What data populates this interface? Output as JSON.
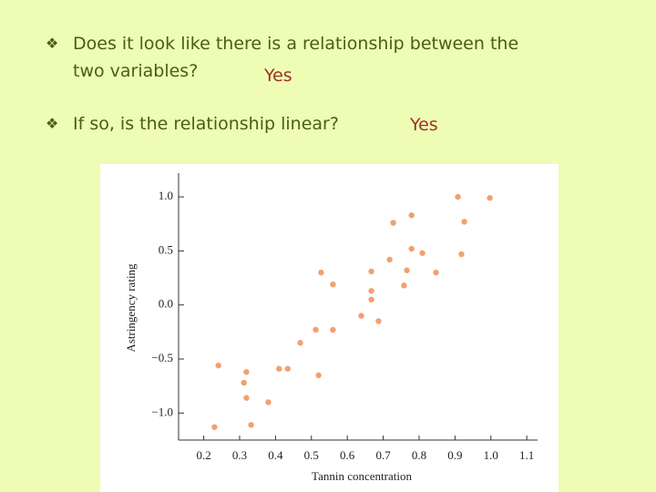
{
  "slide": {
    "questions": [
      {
        "lines": [
          "Does it look like there is a relationship between the",
          "two variables?"
        ],
        "answer": "Yes"
      },
      {
        "lines": [
          "If so, is the relationship linear?"
        ],
        "answer": "Yes"
      }
    ]
  },
  "chart_data": {
    "type": "scatter",
    "x_label": "Tannin concentration",
    "y_label": "Astringency rating",
    "color": "#f2a070",
    "x": [
      0.23,
      0.241,
      0.312,
      0.319,
      0.319,
      0.332,
      0.38,
      0.41,
      0.434,
      0.469,
      0.512,
      0.52,
      0.527,
      0.56,
      0.56,
      0.639,
      0.667,
      0.667,
      0.667,
      0.687,
      0.718,
      0.728,
      0.758,
      0.766,
      0.779,
      0.779,
      0.809,
      0.847,
      0.908,
      0.918,
      0.926,
      0.997
    ],
    "values": [
      -1.13,
      -0.56,
      -0.72,
      -0.62,
      -0.86,
      -1.11,
      -0.9,
      -0.59,
      -0.59,
      -0.35,
      -0.23,
      -0.65,
      0.3,
      0.19,
      -0.23,
      -0.1,
      0.31,
      0.13,
      0.05,
      -0.15,
      0.42,
      0.76,
      0.18,
      0.32,
      0.52,
      0.83,
      0.48,
      0.3,
      1.0,
      0.47,
      0.77,
      0.99
    ],
    "xlim": [
      0.13,
      1.13
    ],
    "ylim": [
      -1.25,
      1.22
    ],
    "xticks": [
      0.2,
      0.3,
      0.4,
      0.5,
      0.6,
      0.7,
      0.8,
      0.9,
      {
        "value": 1.0,
        "label": "1.0"
      },
      1.1
    ],
    "yticks": [
      {
        "value": -1.0,
        "label": "−1.0"
      },
      {
        "value": -0.5,
        "label": "−0.5"
      },
      {
        "value": 0.0,
        "label": "0.0"
      },
      {
        "value": 0.5,
        "label": "0.5"
      },
      {
        "value": 1.0,
        "label": "1.0"
      }
    ]
  }
}
